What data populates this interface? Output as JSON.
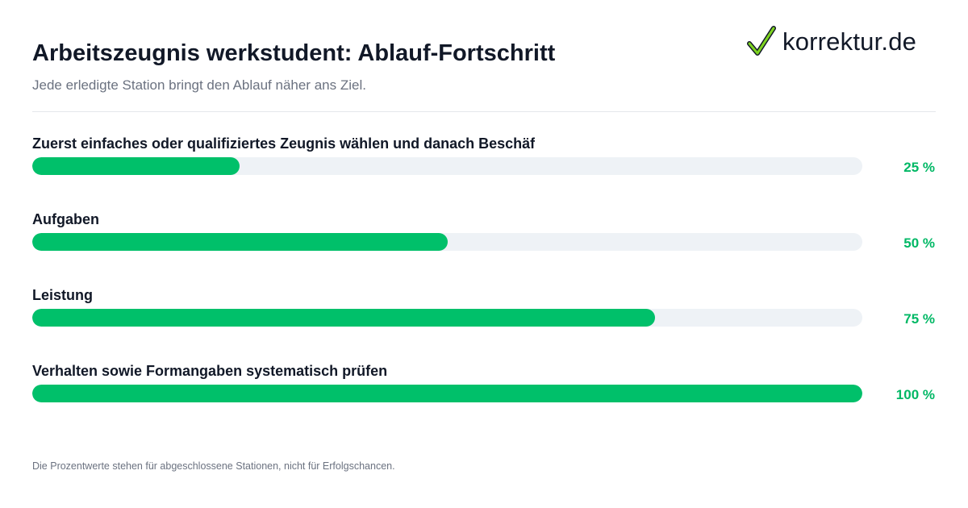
{
  "header": {
    "title": "Arbeitszeugnis werkstudent: Ablauf-Fortschritt",
    "subtitle": "Jede erledigte Station bringt den Ablauf näher ans Ziel."
  },
  "logo": {
    "text": "korrektur.de",
    "icon": "checkmark-icon"
  },
  "colors": {
    "accent": "#00c06a",
    "percent_text": "#00b865",
    "track": "#eef2f6",
    "title": "#111827",
    "muted": "#6b7280"
  },
  "chart_data": {
    "type": "bar",
    "orientation": "horizontal",
    "title": "Arbeitszeugnis werkstudent: Ablauf-Fortschritt",
    "subtitle": "Jede erledigte Station bringt den Ablauf näher ans Ziel.",
    "categories": [
      "Zuerst einfaches oder qualifiziertes Zeugnis wählen und danach Beschäf",
      "Aufgaben",
      "Leistung",
      "Verhalten sowie Formangaben systematisch prüfen"
    ],
    "values": [
      25,
      50,
      75,
      100
    ],
    "value_labels": [
      "25 %",
      "50 %",
      "75 %",
      "100 %"
    ],
    "xlim": [
      0,
      100
    ],
    "unit": "%",
    "grid": false,
    "legend": "none"
  },
  "footnote": "Die Prozentwerte stehen für abgeschlossene Stationen, nicht für Erfolgschancen."
}
